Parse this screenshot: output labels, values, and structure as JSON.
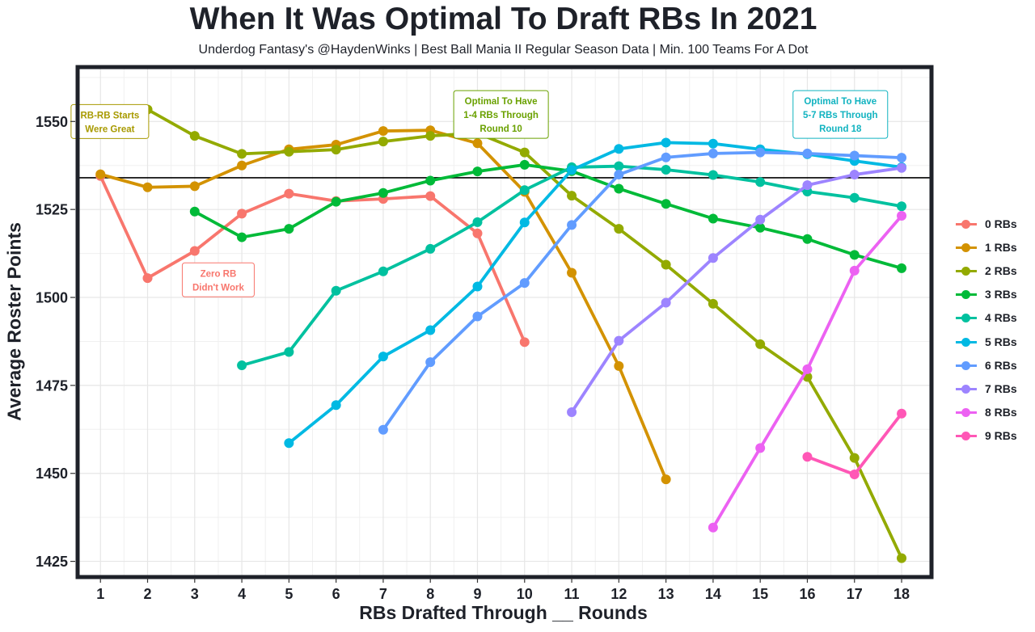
{
  "chart_data": {
    "type": "line",
    "title": "When It Was Optimal To Draft RBs In 2021",
    "subtitle": "Underdog Fantasy's @HaydenWinks | Best Ball Mania II Regular Season Data | Min. 100 Teams For A Dot",
    "xlabel": "RBs Drafted Through __ Rounds",
    "ylabel": "Average Roster Points",
    "x": [
      1,
      2,
      3,
      4,
      5,
      6,
      7,
      8,
      9,
      10,
      11,
      12,
      13,
      14,
      15,
      16,
      17,
      18
    ],
    "xlim": [
      0.55,
      18.6
    ],
    "ylim": [
      1421,
      1565
    ],
    "yticks": [
      1425,
      1450,
      1475,
      1500,
      1525,
      1550
    ],
    "hline": 1534,
    "grid": true,
    "legend_position": "right",
    "series": [
      {
        "name": "0 RBs",
        "color": "#f8766d",
        "x": [
          1,
          2,
          3,
          4,
          5,
          6,
          7,
          8,
          9,
          10
        ],
        "values": [
          1534.5,
          1505.5,
          1513.2,
          1523.8,
          1529.5,
          1527.4,
          1528.0,
          1528.8,
          1518.2,
          1487.3
        ]
      },
      {
        "name": "1 RBs",
        "color": "#d39200",
        "x": [
          1,
          2,
          3,
          4,
          5,
          6,
          7,
          8,
          9,
          10,
          11,
          12,
          13
        ],
        "values": [
          1535.0,
          1531.3,
          1531.6,
          1537.5,
          1542.1,
          1543.4,
          1547.3,
          1547.5,
          1543.8,
          1530.0,
          1507.0,
          1480.5,
          1448.3
        ]
      },
      {
        "name": "2 RBs",
        "color": "#93aa00",
        "x": [
          2,
          3,
          4,
          5,
          6,
          7,
          8,
          9,
          10,
          11,
          12,
          13,
          14,
          15,
          16,
          17,
          18
        ],
        "values": [
          1553.4,
          1545.9,
          1540.8,
          1541.4,
          1542.0,
          1544.3,
          1545.9,
          1546.7,
          1541.2,
          1528.9,
          1519.5,
          1509.3,
          1498.2,
          1486.7,
          1477.4,
          1454.4,
          1425.9
        ]
      },
      {
        "name": "3 RBs",
        "color": "#00ba38",
        "x": [
          3,
          4,
          5,
          6,
          7,
          8,
          9,
          10,
          11,
          12,
          13,
          14,
          15,
          16,
          17,
          18
        ],
        "values": [
          1524.4,
          1517.1,
          1519.5,
          1527.2,
          1529.7,
          1533.2,
          1535.8,
          1537.7,
          1535.9,
          1530.9,
          1526.6,
          1522.4,
          1519.8,
          1516.6,
          1512.1,
          1508.3
        ]
      },
      {
        "name": "4 RBs",
        "color": "#00c19f",
        "x": [
          4,
          5,
          6,
          7,
          8,
          9,
          10,
          11,
          12,
          13,
          14,
          15,
          16,
          17,
          18
        ],
        "values": [
          1480.7,
          1484.5,
          1501.9,
          1507.4,
          1513.8,
          1521.4,
          1530.5,
          1537.0,
          1537.3,
          1536.3,
          1534.8,
          1532.8,
          1530.1,
          1528.3,
          1525.9
        ]
      },
      {
        "name": "5 RBs",
        "color": "#00b9e3",
        "x": [
          5,
          6,
          7,
          8,
          9,
          10,
          11,
          12,
          13,
          14,
          15,
          16,
          17,
          18
        ],
        "values": [
          1458.6,
          1469.4,
          1483.2,
          1490.7,
          1503.1,
          1521.3,
          1536.2,
          1542.2,
          1544.0,
          1543.7,
          1542.1,
          1540.7,
          1538.8,
          1537.0
        ]
      },
      {
        "name": "6 RBs",
        "color": "#619cff",
        "x": [
          7,
          8,
          9,
          10,
          11,
          12,
          13,
          14,
          15,
          16,
          17,
          18
        ],
        "values": [
          1462.4,
          1481.6,
          1494.6,
          1504.1,
          1520.6,
          1534.9,
          1539.8,
          1540.9,
          1541.2,
          1540.9,
          1540.3,
          1539.7
        ]
      },
      {
        "name": "7 RBs",
        "color": "#9d84ff",
        "x": [
          11,
          12,
          13,
          14,
          15,
          16,
          17,
          18
        ],
        "values": [
          1467.4,
          1487.7,
          1498.5,
          1511.2,
          1522.1,
          1531.9,
          1534.9,
          1536.8
        ]
      },
      {
        "name": "8 RBs",
        "color": "#ec61f2",
        "x": [
          14,
          15,
          16,
          17,
          18
        ],
        "values": [
          1434.6,
          1457.2,
          1479.6,
          1507.6,
          1523.2
        ]
      },
      {
        "name": "9 RBs",
        "color": "#ff57b6",
        "x": [
          16,
          17,
          18
        ],
        "values": [
          1454.7,
          1449.7,
          1467.0
        ]
      }
    ],
    "annotations": [
      {
        "lines": [
          "RB-RB Starts",
          "Were Great"
        ],
        "x": 1.2,
        "y": 1550,
        "color": "#a89a00"
      },
      {
        "lines": [
          "Zero RB",
          "Didn't Work"
        ],
        "x": 3.5,
        "y": 1505,
        "color": "#f8766d"
      },
      {
        "lines": [
          "Optimal To Have",
          "1-4 RBs Through",
          "Round 10"
        ],
        "x": 9.5,
        "y": 1552,
        "color": "#6aa100"
      },
      {
        "lines": [
          "Optimal To Have",
          "5-7 RBs Through",
          "Round 18"
        ],
        "x": 16.7,
        "y": 1552,
        "color": "#11b3c0"
      }
    ]
  }
}
